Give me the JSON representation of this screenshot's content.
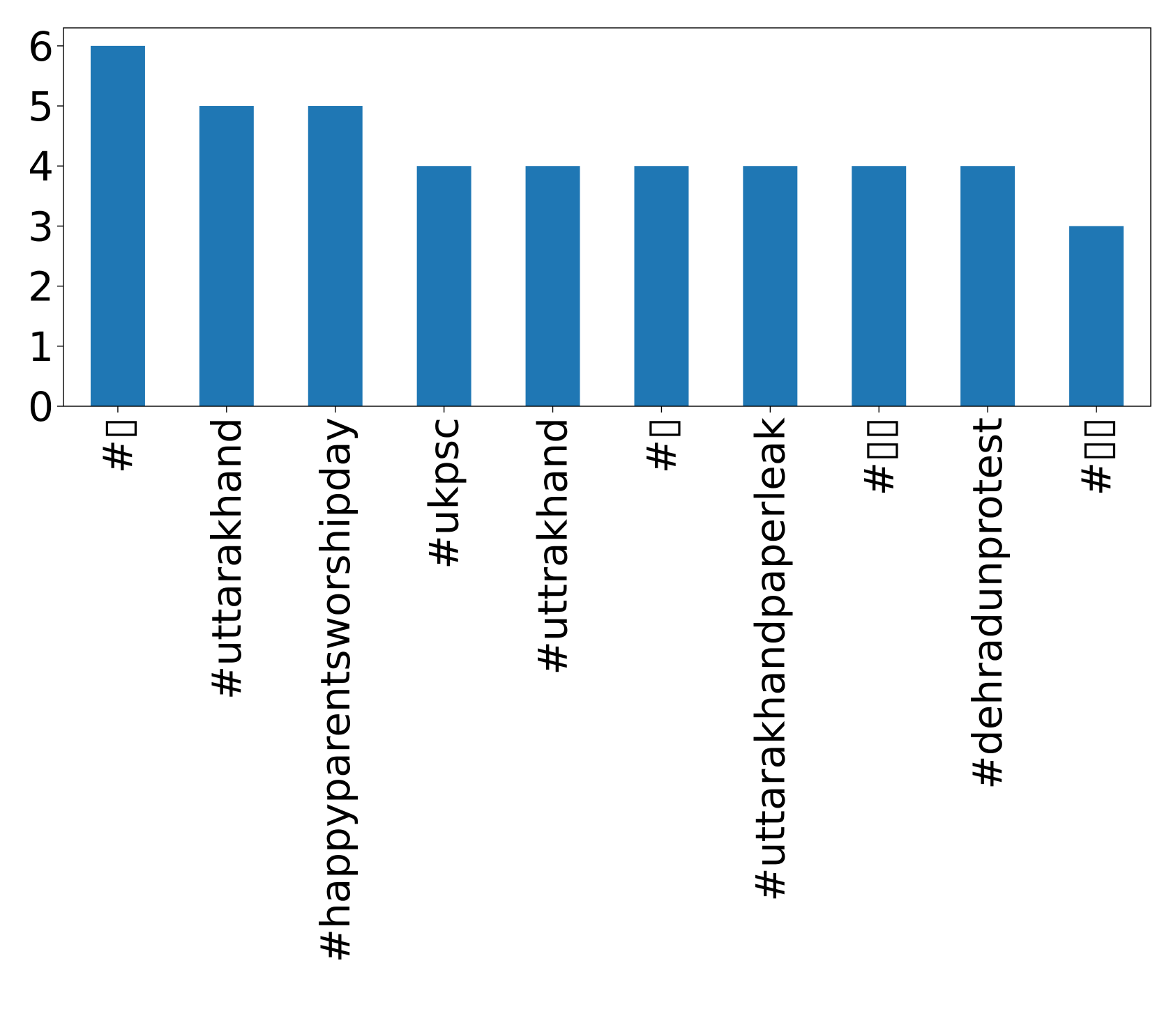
{
  "chart_data": {
    "type": "bar",
    "categories": [
      "#▯",
      "#uttarakhand",
      "#happyparentsworshipday",
      "#ukpsc",
      "#uttrakhand",
      "#▯",
      "#uttarakhandpaperleak",
      "#▯▯",
      "#dehradunprotest",
      "#▯▯"
    ],
    "values": [
      6,
      5,
      5,
      4,
      4,
      4,
      4,
      4,
      4,
      3
    ],
    "ylim": [
      0,
      6.3
    ],
    "yticks": [
      "0",
      "1",
      "2",
      "3",
      "4",
      "5",
      "6"
    ],
    "grid": false,
    "legend": "none",
    "colors": {
      "bar": "#1f77b4"
    }
  }
}
